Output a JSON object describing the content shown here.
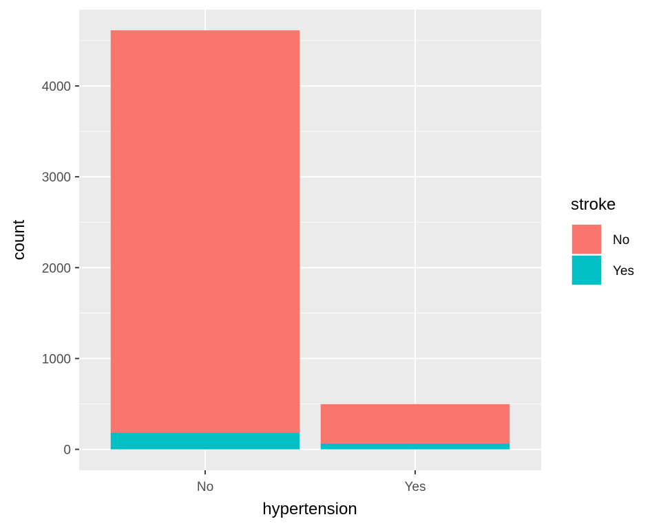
{
  "chart_data": {
    "type": "bar",
    "stacked": true,
    "categories": [
      "No",
      "Yes"
    ],
    "series": [
      {
        "name": "No",
        "color": "#F8766D",
        "values": [
          4429,
          432
        ]
      },
      {
        "name": "Yes",
        "color": "#00BFC4",
        "values": [
          183,
          66
        ]
      }
    ],
    "xlabel": "hypertension",
    "ylabel": "count",
    "ylim": [
      -230,
      4840
    ],
    "yticks": [
      0,
      1000,
      2000,
      3000,
      4000
    ],
    "ytick_labels": [
      "0",
      "1000",
      "2000",
      "3000",
      "4000"
    ],
    "legend": {
      "title": "stroke",
      "position": "right"
    },
    "grid": true,
    "panel_background": "#EBEBEB"
  }
}
